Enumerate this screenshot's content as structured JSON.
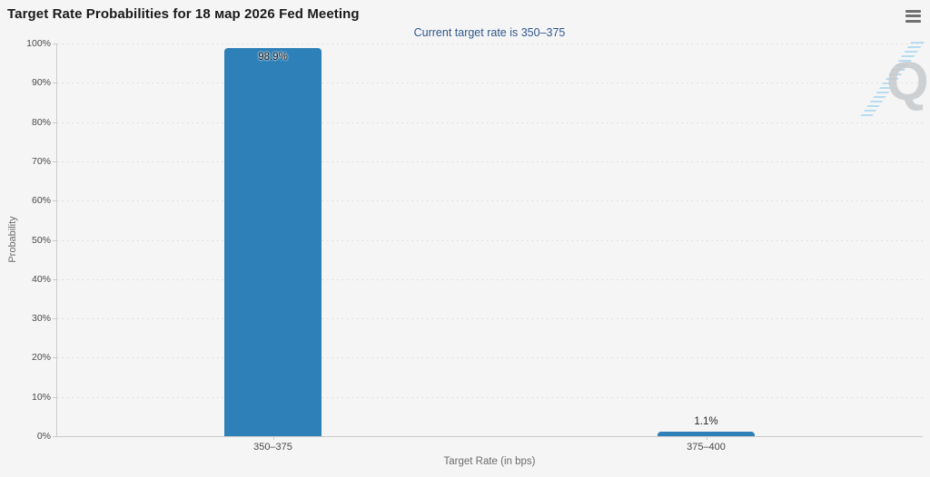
{
  "header": {
    "menu_icon": "hamburger-menu"
  },
  "watermark": {
    "letter": "Q"
  },
  "colors": {
    "background": "#f5f5f6",
    "bar": "#2e80b9",
    "subtitle_text": "#30588c",
    "title_text": "#1a1a1a",
    "tick_label_text": "#4a4a4a",
    "axis_title_text": "#6b6b6b",
    "grid_line": "#d9d9da",
    "axis_line": "#cbcbcb"
  },
  "chart_data": {
    "type": "bar",
    "title": "Target Rate Probabilities for 18 мар 2026 Fed Meeting",
    "subtitle": "Current target rate is 350–375",
    "categories": [
      "350–375",
      "375–400"
    ],
    "values": [
      98.9,
      1.1
    ],
    "data_labels": [
      "98.9%",
      "1.1%"
    ],
    "xlabel": "Target Rate (in bps)",
    "ylabel": "Probability",
    "ylim": [
      0,
      100
    ],
    "ytick_step": 10,
    "ytick_labels": [
      "0%",
      "10%",
      "20%",
      "30%",
      "40%",
      "50%",
      "60%",
      "70%",
      "80%",
      "90%",
      "100%"
    ],
    "grid": "dotted-horizontal",
    "legend": "none"
  }
}
